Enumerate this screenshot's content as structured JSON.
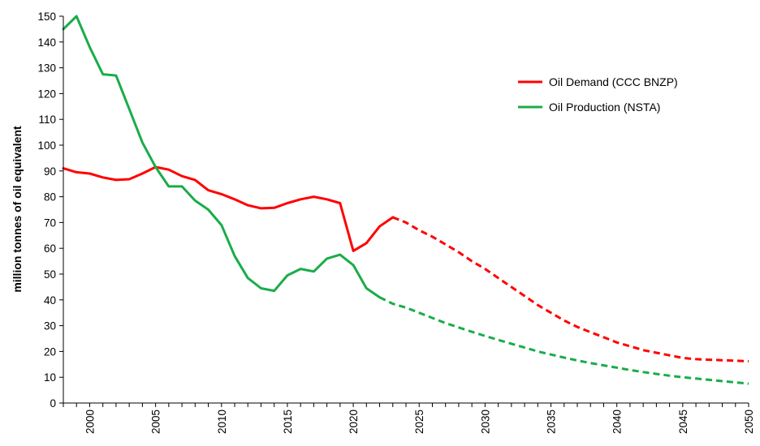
{
  "chart_data": {
    "type": "line",
    "ylabel": "million tonnes of oil equivalent",
    "xlim": [
      1998,
      2050
    ],
    "ylim": [
      0,
      150
    ],
    "y_ticks": [
      0,
      10,
      20,
      30,
      40,
      50,
      60,
      70,
      80,
      90,
      100,
      110,
      120,
      130,
      140,
      150
    ],
    "x_ticks": [
      2000,
      2005,
      2010,
      2015,
      2020,
      2025,
      2030,
      2035,
      2040,
      2045,
      2050
    ],
    "grid": false,
    "legend_position": "top-right",
    "series": [
      {
        "name": "Oil Demand (CCC BNZP)",
        "color": "#ff0000",
        "actual": {
          "x": [
            1998,
            1999,
            2000,
            2001,
            2002,
            2003,
            2004,
            2005,
            2006,
            2007,
            2008,
            2009,
            2010,
            2011,
            2012,
            2013,
            2014,
            2015,
            2016,
            2017,
            2018,
            2019,
            2020,
            2021,
            2022,
            2023
          ],
          "y": [
            91,
            89.5,
            89,
            87.5,
            86.5,
            86.8,
            89,
            91.5,
            90.5,
            88,
            86.5,
            82.5,
            81,
            79,
            76.7,
            75.5,
            75.7,
            77.5,
            79,
            80,
            79,
            77.5,
            59,
            62,
            68.5,
            72
          ]
        },
        "projected": {
          "x": [
            2023,
            2024,
            2025,
            2026,
            2027,
            2028,
            2029,
            2030,
            2031,
            2032,
            2033,
            2034,
            2035,
            2036,
            2037,
            2038,
            2039,
            2040,
            2041,
            2042,
            2043,
            2044,
            2045,
            2046,
            2047,
            2048,
            2049,
            2050
          ],
          "y": [
            72,
            70,
            67,
            64.5,
            61.5,
            58.5,
            55,
            52,
            48.5,
            45,
            41.5,
            38,
            35,
            32,
            29.5,
            27.5,
            25.5,
            23.5,
            22,
            20.5,
            19.5,
            18.5,
            17.5,
            17,
            16.8,
            16.6,
            16.4,
            16.2
          ]
        }
      },
      {
        "name": "Oil Production (NSTA)",
        "color": "#1aac4a",
        "actual": {
          "x": [
            1998,
            1999,
            2000,
            2001,
            2002,
            2003,
            2004,
            2005,
            2006,
            2007,
            2008,
            2009,
            2010,
            2011,
            2012,
            2013,
            2014,
            2015,
            2016,
            2017,
            2018,
            2019,
            2020,
            2021,
            2022
          ],
          "y": [
            145,
            150,
            138,
            127.5,
            127,
            114,
            101,
            91.5,
            84,
            84,
            78.5,
            75,
            69,
            57,
            48.5,
            44.5,
            43.5,
            49.5,
            52,
            51,
            56,
            57.5,
            53.5,
            44.5,
            41
          ]
        },
        "projected": {
          "x": [
            2022,
            2023,
            2024,
            2025,
            2026,
            2027,
            2028,
            2029,
            2030,
            2031,
            2032,
            2033,
            2034,
            2035,
            2036,
            2037,
            2038,
            2039,
            2040,
            2041,
            2042,
            2043,
            2044,
            2045,
            2046,
            2047,
            2048,
            2049,
            2050
          ],
          "y": [
            41,
            38.5,
            37,
            35,
            33,
            31,
            29.3,
            27.6,
            26,
            24.5,
            23,
            21.5,
            20,
            18.8,
            17.6,
            16.5,
            15.5,
            14.6,
            13.7,
            12.8,
            12,
            11.3,
            10.6,
            10,
            9.5,
            9,
            8.5,
            8,
            7.5
          ]
        }
      }
    ]
  }
}
